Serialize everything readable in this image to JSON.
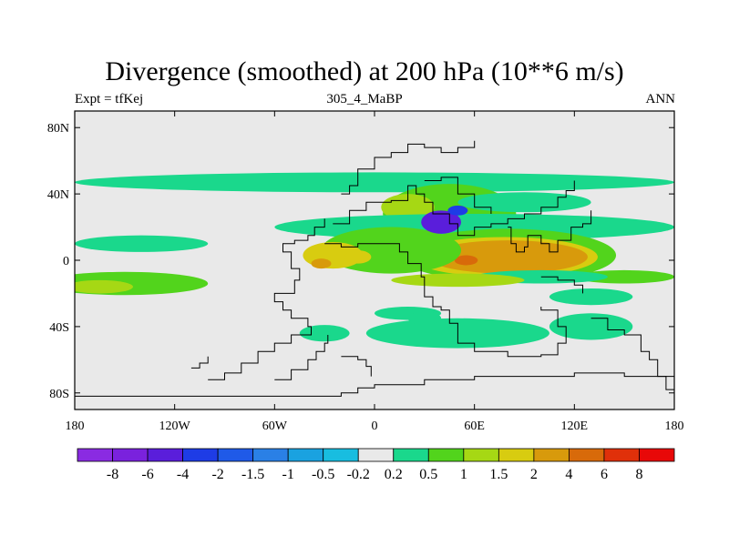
{
  "title": "Divergence (smoothed) at 200 hPa (10**6 m/s)",
  "subtitle_left": "Expt = tfKej",
  "subtitle_center": "305_4_MaBP",
  "subtitle_right": "ANN",
  "chart_data": {
    "type": "heatmap",
    "x_ticks": [
      {
        "value": -180,
        "label": "180"
      },
      {
        "value": -120,
        "label": "120W"
      },
      {
        "value": -60,
        "label": "60W"
      },
      {
        "value": 0,
        "label": "0"
      },
      {
        "value": 60,
        "label": "60E"
      },
      {
        "value": 120,
        "label": "120E"
      },
      {
        "value": 180,
        "label": "180"
      }
    ],
    "y_ticks": [
      {
        "value": 80,
        "label": "80N"
      },
      {
        "value": 40,
        "label": "40N"
      },
      {
        "value": 0,
        "label": "0"
      },
      {
        "value": -40,
        "label": "40S"
      },
      {
        "value": -80,
        "label": "80S"
      }
    ],
    "xlim": [
      -180,
      180
    ],
    "ylim": [
      -90,
      90
    ],
    "colorbar": {
      "colors": [
        "#8a2be2",
        "#7a22dd",
        "#5a1edb",
        "#1e3ce6",
        "#1f5ae8",
        "#2a80e6",
        "#1aa2e0",
        "#18bde0",
        "#e9e9e9",
        "#1ad88c",
        "#52d41c",
        "#a6d814",
        "#d8cc10",
        "#d89a0c",
        "#d86a0a",
        "#e0300a",
        "#e80808"
      ],
      "labels": [
        "-8",
        "-6",
        "-4",
        "-2",
        "-1.5",
        "-1",
        "-0.5",
        "-0.2",
        "0.2",
        "0.5",
        "1",
        "1.5",
        "2",
        "4",
        "6",
        "8"
      ]
    },
    "blobs": [
      {
        "lon": 0,
        "lat": 47,
        "rlon": 180,
        "rlat": 6,
        "level": 9
      },
      {
        "lon": 45,
        "lat": 28,
        "rlon": 40,
        "rlat": 18,
        "level": 10
      },
      {
        "lon": 20,
        "lat": 32,
        "rlon": 16,
        "rlat": 8,
        "level": 11
      },
      {
        "lon": 90,
        "lat": 35,
        "rlon": 40,
        "rlat": 6,
        "level": 9
      },
      {
        "lon": 60,
        "lat": 20,
        "rlon": 120,
        "rlat": 8,
        "level": 9
      },
      {
        "lon": -140,
        "lat": 10,
        "rlon": 40,
        "rlat": 5,
        "level": 9
      },
      {
        "lon": -115,
        "lat": 0,
        "rlon": 20,
        "rlat": 2.5,
        "level": 8
      },
      {
        "lon": -150,
        "lat": -14,
        "rlon": 50,
        "rlat": 7,
        "level": 10
      },
      {
        "lon": -165,
        "lat": -16,
        "rlon": 20,
        "rlat": 4,
        "level": 11
      },
      {
        "lon": 80,
        "lat": 3,
        "rlon": 65,
        "rlat": 16,
        "level": 10
      },
      {
        "lon": 78,
        "lat": 2,
        "rlon": 56,
        "rlat": 12,
        "level": 12
      },
      {
        "lon": 80,
        "lat": 2,
        "rlon": 48,
        "rlat": 10,
        "level": 13
      },
      {
        "lon": 55,
        "lat": 0,
        "rlon": 7,
        "rlat": 3,
        "level": 14
      },
      {
        "lon": 10,
        "lat": 6,
        "rlon": 42,
        "rlat": 14,
        "level": 10
      },
      {
        "lon": -25,
        "lat": 3,
        "rlon": 18,
        "rlat": 8,
        "level": 12
      },
      {
        "lon": -32,
        "lat": -2,
        "rlon": 6,
        "rlat": 3,
        "level": 13
      },
      {
        "lon": -10,
        "lat": 2,
        "rlon": 8,
        "rlat": 4,
        "level": 12
      },
      {
        "lon": 50,
        "lat": -44,
        "rlon": 55,
        "rlat": 9,
        "level": 9
      },
      {
        "lon": 130,
        "lat": -40,
        "rlon": 25,
        "rlat": 8,
        "level": 9
      },
      {
        "lon": -30,
        "lat": -44,
        "rlon": 15,
        "rlat": 5,
        "level": 9
      },
      {
        "lon": 20,
        "lat": -32,
        "rlon": 20,
        "rlat": 4,
        "level": 9
      },
      {
        "lon": 130,
        "lat": -22,
        "rlon": 25,
        "rlat": 5,
        "level": 9
      },
      {
        "lon": 150,
        "lat": -10,
        "rlon": 30,
        "rlat": 4,
        "level": 10
      },
      {
        "lon": 100,
        "lat": -10,
        "rlon": 40,
        "rlat": 4,
        "level": 9
      },
      {
        "lon": 50,
        "lat": -12,
        "rlon": 40,
        "rlat": 4,
        "level": 11
      },
      {
        "lon": 30,
        "lat": -35,
        "rlon": 10,
        "rlat": 4,
        "level": 9
      },
      {
        "lon": 40,
        "lat": 23,
        "rlon": 12,
        "rlat": 7,
        "level": 2
      },
      {
        "lon": 50,
        "lat": 30,
        "rlon": 6,
        "rlat": 3,
        "level": 3
      }
    ],
    "coastlines": [
      [
        [
          -180,
          -82
        ],
        [
          -40,
          -82
        ],
        [
          -20,
          -80
        ],
        [
          -10,
          -77
        ],
        [
          0,
          -75
        ],
        [
          30,
          -72
        ],
        [
          60,
          -70
        ],
        [
          120,
          -68
        ],
        [
          150,
          -70
        ],
        [
          180,
          -78
        ]
      ],
      [
        [
          -100,
          -72
        ],
        [
          -90,
          -68
        ],
        [
          -80,
          -62
        ],
        [
          -70,
          -55
        ],
        [
          -60,
          -50
        ],
        [
          -50,
          -45
        ],
        [
          -38,
          -40
        ],
        [
          -40,
          -35
        ],
        [
          -50,
          -30
        ],
        [
          -55,
          -25
        ],
        [
          -60,
          -20
        ],
        [
          -48,
          -12
        ],
        [
          -45,
          -5
        ],
        [
          -50,
          5
        ],
        [
          -55,
          10
        ],
        [
          -48,
          12
        ],
        [
          -40,
          15
        ],
        [
          -36,
          20
        ],
        [
          -30,
          25
        ]
      ],
      [
        [
          -60,
          -72
        ],
        [
          -50,
          -66
        ],
        [
          -40,
          -60
        ],
        [
          -35,
          -55
        ],
        [
          -30,
          -50
        ],
        [
          -28,
          -45
        ]
      ],
      [
        [
          -20,
          -58
        ],
        [
          -10,
          -60
        ],
        [
          -5,
          -64
        ],
        [
          -2,
          -70
        ]
      ],
      [
        [
          -30,
          10
        ],
        [
          -20,
          8
        ],
        [
          -10,
          10
        ],
        [
          5,
          10
        ],
        [
          15,
          5
        ],
        [
          20,
          -2
        ],
        [
          28,
          -10
        ],
        [
          30,
          -22
        ],
        [
          35,
          -28
        ],
        [
          40,
          -30
        ],
        [
          45,
          -38
        ],
        [
          50,
          -50
        ],
        [
          60,
          -55
        ],
        [
          80,
          -58
        ],
        [
          100,
          -57
        ],
        [
          110,
          -50
        ],
        [
          115,
          -40
        ],
        [
          110,
          -30
        ],
        [
          100,
          -28
        ]
      ],
      [
        [
          -25,
          22
        ],
        [
          -15,
          30
        ],
        [
          -5,
          35
        ],
        [
          10,
          36
        ],
        [
          20,
          45
        ],
        [
          25,
          40
        ],
        [
          30,
          35
        ],
        [
          35,
          28
        ],
        [
          45,
          22
        ],
        [
          50,
          15
        ],
        [
          60,
          20
        ],
        [
          70,
          22
        ],
        [
          80,
          25
        ],
        [
          90,
          28
        ],
        [
          100,
          32
        ],
        [
          110,
          38
        ],
        [
          115,
          42
        ],
        [
          120,
          48
        ]
      ],
      [
        [
          -20,
          40
        ],
        [
          -15,
          45
        ],
        [
          -10,
          55
        ],
        [
          0,
          62
        ],
        [
          10,
          65
        ],
        [
          20,
          70
        ],
        [
          30,
          68
        ],
        [
          40,
          65
        ],
        [
          50,
          68
        ],
        [
          60,
          72
        ]
      ],
      [
        [
          30,
          48
        ],
        [
          40,
          50
        ],
        [
          50,
          40
        ],
        [
          60,
          32
        ],
        [
          70,
          28
        ]
      ],
      [
        [
          80,
          20
        ],
        [
          82,
          10
        ],
        [
          85,
          5
        ],
        [
          90,
          8
        ],
        [
          92,
          15
        ],
        [
          100,
          10
        ],
        [
          105,
          5
        ],
        [
          110,
          12
        ],
        [
          118,
          20
        ],
        [
          125,
          22
        ],
        [
          130,
          30
        ]
      ],
      [
        [
          100,
          -10
        ],
        [
          110,
          -12
        ],
        [
          120,
          -15
        ],
        [
          125,
          -20
        ]
      ],
      [
        [
          130,
          -35
        ],
        [
          140,
          -42
        ],
        [
          150,
          -45
        ],
        [
          160,
          -55
        ],
        [
          165,
          -60
        ],
        [
          170,
          -70
        ],
        [
          175,
          -78
        ],
        [
          180,
          -80
        ]
      ],
      [
        [
          -110,
          -65
        ],
        [
          -105,
          -62
        ],
        [
          -100,
          -58
        ]
      ]
    ]
  }
}
